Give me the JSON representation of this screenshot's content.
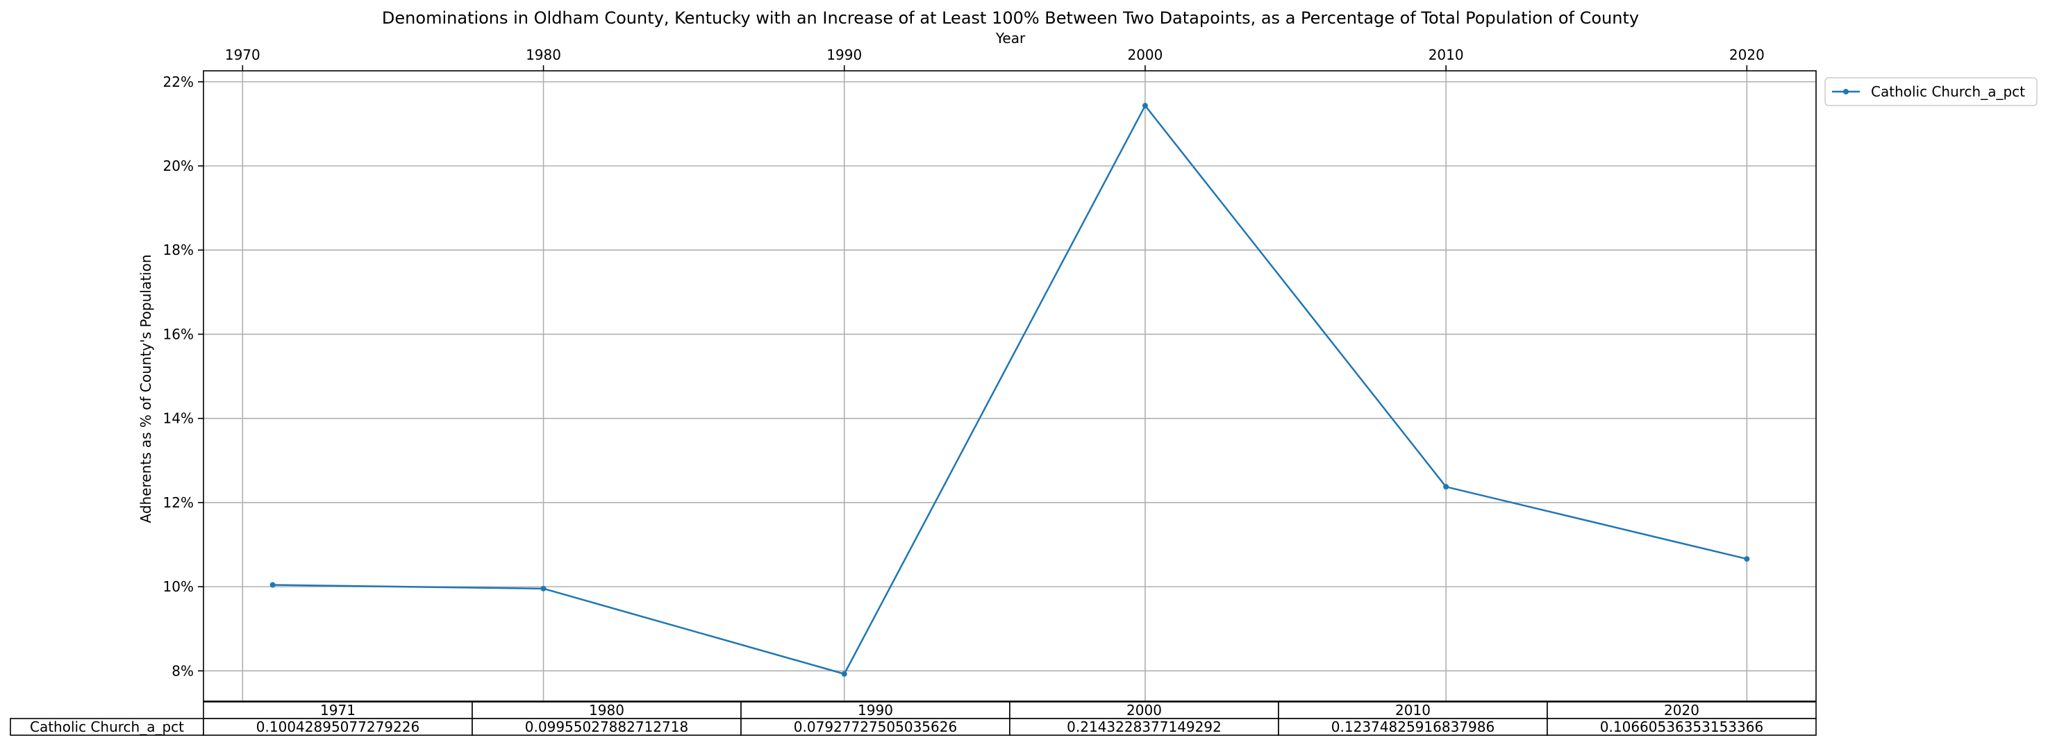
{
  "chart_data": {
    "type": "line",
    "title": "Denominations in Oldham County, Kentucky with an Increase of at Least 100% Between Two Datapoints, as a Percentage of Total Population of County",
    "xlabel": "Year",
    "ylabel": "Adherents as % of County's Population",
    "x": [
      1971,
      1980,
      1990,
      2000,
      2010,
      2020
    ],
    "xlim": [
      1968.7,
      2022.3
    ],
    "ylim": [
      0.0728,
      0.2226
    ],
    "x_ticks": [
      1970,
      1980,
      1990,
      2000,
      2010,
      2020
    ],
    "y_ticks": [
      0.08,
      0.1,
      0.12,
      0.14,
      0.16,
      0.18,
      0.2,
      0.22
    ],
    "y_tick_labels": [
      "8%",
      "10%",
      "12%",
      "14%",
      "16%",
      "18%",
      "20%",
      "22%"
    ],
    "x_axis_position": "top",
    "grid": true,
    "legend_position": "outside-top-right",
    "series": [
      {
        "name": "Catholic Church_a_pct",
        "color": "#1f77b4",
        "marker": "point",
        "values": [
          0.10042895077279226,
          0.09955027882712718,
          0.07927727505035626,
          0.2143228377149292,
          0.12374825916837986,
          0.10660536353153366
        ]
      }
    ],
    "table": {
      "col_labels": [
        "1971",
        "1980",
        "1990",
        "2000",
        "2010",
        "2020"
      ],
      "row_labels": [
        "Catholic Church_a_pct"
      ],
      "cells": [
        [
          "0.10042895077279226",
          "0.09955027882712718",
          "0.07927727505035626",
          "0.2143228377149292",
          "0.12374825916837986",
          "0.10660536353153366"
        ]
      ]
    }
  }
}
